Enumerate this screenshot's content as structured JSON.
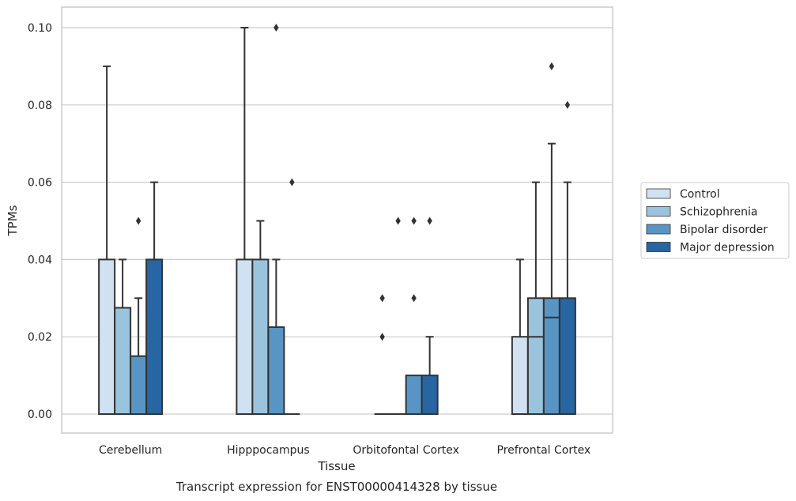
{
  "chart_data": {
    "type": "box",
    "title": "Transcript expression for ENST00000414328 by tissue",
    "xlabel": "Tissue",
    "ylabel": "TPMs",
    "ylim": [
      -0.005,
      0.105
    ],
    "yticks": [
      0.0,
      0.02,
      0.04,
      0.06,
      0.08,
      0.1
    ],
    "ytick_labels": [
      "0.00",
      "0.02",
      "0.04",
      "0.06",
      "0.08",
      "0.10"
    ],
    "grid": true,
    "legend_position": "right",
    "categories": [
      "Cerebellum",
      "Hipppocampus",
      "Orbitofontal Cortex",
      "Prefrontal Cortex"
    ],
    "series": [
      {
        "name": "Control",
        "color": "#d0e1f2",
        "boxes": [
          {
            "q1": 0.0,
            "median": 0.0,
            "q3": 0.04,
            "whisker_low": 0.0,
            "whisker_high": 0.09,
            "outliers": []
          },
          {
            "q1": 0.0,
            "median": 0.0,
            "q3": 0.04,
            "whisker_low": 0.0,
            "whisker_high": 0.1,
            "outliers": []
          },
          {
            "q1": 0.0,
            "median": 0.0,
            "q3": 0.0,
            "whisker_low": 0.0,
            "whisker_high": 0.0,
            "outliers": [
              0.02,
              0.03
            ]
          },
          {
            "q1": 0.0,
            "median": 0.0,
            "q3": 0.02,
            "whisker_low": 0.0,
            "whisker_high": 0.04,
            "outliers": []
          }
        ]
      },
      {
        "name": "Schizophrenia",
        "color": "#9ac4de",
        "boxes": [
          {
            "q1": 0.0,
            "median": 0.0,
            "q3": 0.0275,
            "whisker_low": 0.0,
            "whisker_high": 0.04,
            "outliers": []
          },
          {
            "q1": 0.0,
            "median": 0.0,
            "q3": 0.04,
            "whisker_low": 0.0,
            "whisker_high": 0.05,
            "outliers": []
          },
          {
            "q1": 0.0,
            "median": 0.0,
            "q3": 0.0,
            "whisker_low": 0.0,
            "whisker_high": 0.0,
            "outliers": [
              0.05
            ]
          },
          {
            "q1": 0.0,
            "median": 0.02,
            "q3": 0.03,
            "whisker_low": 0.0,
            "whisker_high": 0.06,
            "outliers": []
          }
        ]
      },
      {
        "name": "Bipolar disorder",
        "color": "#5895c4",
        "boxes": [
          {
            "q1": 0.0,
            "median": 0.0,
            "q3": 0.015,
            "whisker_low": 0.0,
            "whisker_high": 0.03,
            "outliers": [
              0.05
            ]
          },
          {
            "q1": 0.0,
            "median": 0.0,
            "q3": 0.0225,
            "whisker_low": 0.0,
            "whisker_high": 0.04,
            "outliers": [
              0.1
            ]
          },
          {
            "q1": 0.0,
            "median": 0.0,
            "q3": 0.01,
            "whisker_low": 0.0,
            "whisker_high": 0.01,
            "outliers": [
              0.03,
              0.05
            ]
          },
          {
            "q1": 0.0,
            "median": 0.025,
            "q3": 0.03,
            "whisker_low": 0.0,
            "whisker_high": 0.07,
            "outliers": [
              0.09
            ]
          }
        ]
      },
      {
        "name": "Major depression",
        "color": "#2766a3",
        "boxes": [
          {
            "q1": 0.0,
            "median": 0.0,
            "q3": 0.04,
            "whisker_low": 0.0,
            "whisker_high": 0.06,
            "outliers": []
          },
          {
            "q1": 0.0,
            "median": 0.0,
            "q3": 0.0,
            "whisker_low": 0.0,
            "whisker_high": 0.0,
            "outliers": [
              0.06
            ]
          },
          {
            "q1": 0.0,
            "median": 0.0,
            "q3": 0.01,
            "whisker_low": 0.0,
            "whisker_high": 0.02,
            "outliers": [
              0.05
            ]
          },
          {
            "q1": 0.0,
            "median": 0.0,
            "q3": 0.03,
            "whisker_low": 0.0,
            "whisker_high": 0.06,
            "outliers": [
              0.08
            ]
          }
        ]
      }
    ]
  }
}
